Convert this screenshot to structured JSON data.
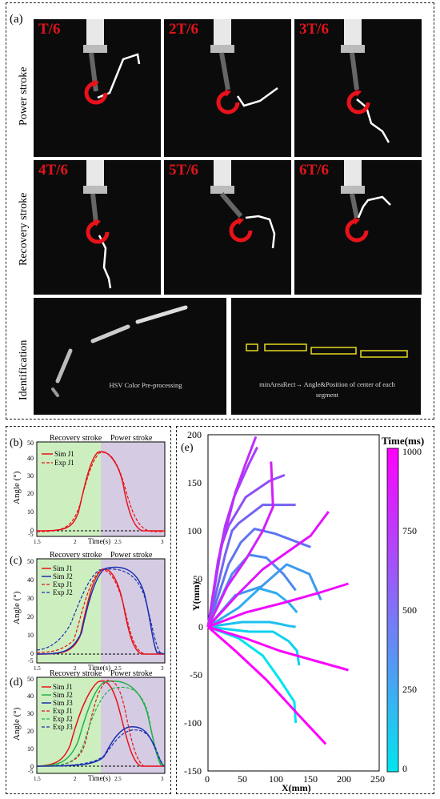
{
  "top_panel": {
    "label": "(a)",
    "rows": [
      {
        "name": "Power stroke",
        "frames": [
          "T/6",
          "2T/6",
          "3T/6"
        ]
      },
      {
        "name": "Recovery stroke",
        "frames": [
          "4T/6",
          "5T/6",
          "6T/6"
        ]
      }
    ],
    "identification": {
      "name": "Identification",
      "left_caption": "HSV Color Pre-processing",
      "right_caption_line1": "minAreaRect→ Angle&Position of center of each",
      "right_caption_line2": "segment"
    }
  },
  "angle_panels": {
    "recovery": "Recovery stroke",
    "power": "Power stroke",
    "ylabel": "Angle (°)",
    "xlabel": "Time(s)",
    "xticks": [
      "1.5",
      "2",
      "2.5",
      "3"
    ],
    "yticks_b": [
      "-5",
      "0",
      "10",
      "20",
      "30",
      "40",
      "50"
    ],
    "yticks": [
      "-5",
      "0",
      "10",
      "20",
      "30",
      "40",
      "50"
    ],
    "panels": [
      {
        "label": "(b)",
        "legend": [
          "Sim J1",
          "Exp J1"
        ]
      },
      {
        "label": "(c)",
        "legend": [
          "Sim J1",
          "Sim J2",
          "Exp J1",
          "Exp J2"
        ]
      },
      {
        "label": "(d)",
        "legend": [
          "Sim J1",
          "Sim J2",
          "Sim J3",
          "Exp J1",
          "Exp J2",
          "Exp J3"
        ]
      }
    ],
    "colors": {
      "j1": "#e8121a",
      "j2": "#23b04a",
      "j3": "#1a2fb0",
      "recovery_bg": "#cdefc0",
      "power_bg": "#d5cce3"
    }
  },
  "trajectory": {
    "label": "(e)",
    "xlabel": "X(mm)",
    "ylabel": "Y(mm)",
    "xticks": [
      "0",
      "50",
      "100",
      "150",
      "200",
      "250"
    ],
    "yticks": [
      "200",
      "150",
      "100",
      "50",
      "0",
      "-50",
      "-100",
      "-150"
    ],
    "colorbar_title": "Time(ms)",
    "colorbar_ticks": [
      "1000",
      "750",
      "500",
      "250",
      "0"
    ]
  },
  "chart_data": {
    "type": "line",
    "title": "",
    "xlabel": "X(mm)",
    "ylabel": "Y(mm)",
    "xlim": [
      0,
      250
    ],
    "ylim": [
      -150,
      200
    ],
    "colorbar": {
      "label": "Time(ms)",
      "range": [
        0,
        1000
      ],
      "colors": [
        "#00e5ee",
        "#ff00ff"
      ]
    },
    "series": [
      {
        "time_ms": 0,
        "x": [
          0,
          45,
          80,
          105,
          126,
          128
        ],
        "y": [
          0,
          -12,
          -30,
          -55,
          -78,
          -100
        ]
      },
      {
        "time_ms": 80,
        "x": [
          0,
          60,
          95,
          118,
          130,
          133
        ],
        "y": [
          0,
          -5,
          -5,
          -15,
          -25,
          -40
        ]
      },
      {
        "time_ms": 160,
        "x": [
          0,
          50,
          90,
          105,
          118,
          128
        ],
        "y": [
          0,
          5,
          5,
          3,
          1,
          0
        ]
      },
      {
        "time_ms": 240,
        "x": [
          0,
          45,
          75,
          100,
          118,
          130
        ],
        "y": [
          0,
          20,
          40,
          35,
          25,
          15
        ]
      },
      {
        "time_ms": 320,
        "x": [
          0,
          40,
          78,
          115,
          148,
          165
        ],
        "y": [
          0,
          33,
          42,
          65,
          55,
          28
        ]
      },
      {
        "time_ms": 400,
        "x": [
          0,
          35,
          60,
          85,
          110,
          128
        ],
        "y": [
          0,
          55,
          75,
          72,
          55,
          38
        ]
      },
      {
        "time_ms": 480,
        "x": [
          0,
          30,
          48,
          68,
          98,
          150
        ],
        "y": [
          0,
          65,
          88,
          102,
          97,
          83
        ]
      },
      {
        "time_ms": 560,
        "x": [
          0,
          25,
          35,
          45,
          80,
          128
        ],
        "y": [
          0,
          75,
          100,
          108,
          127,
          127
        ]
      },
      {
        "time_ms": 640,
        "x": [
          0,
          20,
          30,
          55,
          90,
          112
        ],
        "y": [
          0,
          85,
          105,
          135,
          152,
          158
        ]
      },
      {
        "time_ms": 720,
        "x": [
          0,
          18,
          25,
          38,
          60,
          72
        ],
        "y": [
          0,
          80,
          105,
          135,
          170,
          187
        ]
      },
      {
        "time_ms": 800,
        "x": [
          0,
          15,
          25,
          40,
          55,
          70
        ],
        "y": [
          0,
          70,
          98,
          140,
          170,
          198
        ]
      },
      {
        "time_ms": 860,
        "x": [
          0,
          28,
          55,
          80,
          95,
          92
        ],
        "y": [
          0,
          42,
          70,
          100,
          125,
          172
        ]
      },
      {
        "time_ms": 910,
        "x": [
          0,
          45,
          80,
          110,
          150,
          176
        ],
        "y": [
          0,
          35,
          60,
          75,
          95,
          120
        ]
      },
      {
        "time_ms": 950,
        "x": [
          0,
          55,
          110,
          160,
          205
        ],
        "y": [
          0,
          15,
          25,
          35,
          45
        ]
      },
      {
        "time_ms": 980,
        "x": [
          0,
          55,
          105,
          155,
          205
        ],
        "y": [
          0,
          -12,
          -25,
          -35,
          -45
        ]
      },
      {
        "time_ms": 1000,
        "x": [
          0,
          40,
          85,
          130,
          172
        ],
        "y": [
          0,
          -25,
          -55,
          -90,
          -122
        ]
      }
    ]
  }
}
